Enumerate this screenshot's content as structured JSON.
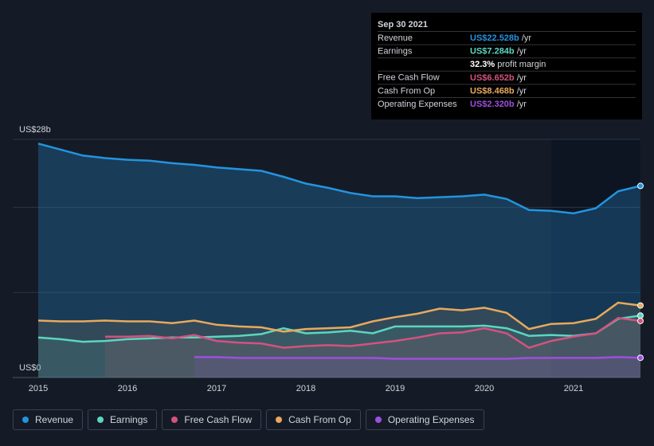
{
  "chart_data": {
    "type": "line",
    "x": [
      2015,
      2015.25,
      2015.5,
      2015.75,
      2016,
      2016.25,
      2016.5,
      2016.75,
      2017,
      2017.25,
      2017.5,
      2017.75,
      2018,
      2018.25,
      2018.5,
      2018.75,
      2019,
      2019.25,
      2019.5,
      2019.75,
      2020,
      2020.25,
      2020.5,
      2020.75,
      2021,
      2021.25,
      2021.5,
      2021.75
    ],
    "xlim": [
      2015,
      2021.75
    ],
    "xticks": [
      2015,
      2016,
      2017,
      2018,
      2019,
      2020,
      2021
    ],
    "ylim": [
      0,
      28
    ],
    "yticks": [
      {
        "value": 0,
        "label": "US$0"
      },
      {
        "value": 10,
        "label": null
      },
      {
        "value": 20,
        "label": null
      },
      {
        "value": 28,
        "label": "US$28b"
      }
    ],
    "grid": true,
    "series": [
      {
        "name": "Revenue",
        "color": "#2394df",
        "values": [
          27.5,
          26.8,
          26.1,
          25.8,
          25.6,
          25.5,
          25.2,
          25.0,
          24.7,
          24.5,
          24.3,
          23.6,
          22.8,
          22.3,
          21.7,
          21.3,
          21.3,
          21.1,
          21.2,
          21.3,
          21.5,
          21.0,
          19.7,
          19.6,
          19.3,
          19.9,
          21.9,
          22.528
        ]
      },
      {
        "name": "Earnings",
        "color": "#5cd6bf",
        "values": [
          4.7,
          4.5,
          4.2,
          4.3,
          4.5,
          4.6,
          4.7,
          4.7,
          4.8,
          4.9,
          5.1,
          5.8,
          5.2,
          5.3,
          5.5,
          5.2,
          6.0,
          6.0,
          6.0,
          6.0,
          6.1,
          5.8,
          4.9,
          5.0,
          4.9,
          5.2,
          6.9,
          7.284
        ]
      },
      {
        "name": "Free Cash Flow",
        "color": "#d4527f",
        "values": [
          null,
          null,
          null,
          4.8,
          4.8,
          4.9,
          4.6,
          5.0,
          4.3,
          4.1,
          4.0,
          3.5,
          3.7,
          3.8,
          3.7,
          4.0,
          4.3,
          4.7,
          5.2,
          5.3,
          5.8,
          5.2,
          3.5,
          4.3,
          4.8,
          5.2,
          7.0,
          6.652
        ]
      },
      {
        "name": "Cash From Op",
        "color": "#e8a95c",
        "values": [
          6.7,
          6.6,
          6.6,
          6.7,
          6.6,
          6.6,
          6.4,
          6.7,
          6.2,
          6.0,
          5.9,
          5.4,
          5.7,
          5.8,
          5.9,
          6.6,
          7.1,
          7.5,
          8.1,
          7.9,
          8.2,
          7.6,
          5.7,
          6.3,
          6.4,
          6.9,
          8.8,
          8.468
        ]
      },
      {
        "name": "Operating Expenses",
        "color": "#9d4fe0",
        "values": [
          null,
          null,
          null,
          null,
          null,
          null,
          null,
          2.4,
          2.4,
          2.3,
          2.3,
          2.3,
          2.3,
          2.3,
          2.3,
          2.3,
          2.2,
          2.2,
          2.2,
          2.2,
          2.2,
          2.2,
          2.3,
          2.3,
          2.3,
          2.3,
          2.4,
          2.32
        ]
      }
    ],
    "tooltip": {
      "date": "Sep 30 2021",
      "rows": [
        {
          "label": "Revenue",
          "value": "US$22.528b",
          "unit": "/yr"
        },
        {
          "label": "Earnings",
          "value": "US$7.284b",
          "unit": "/yr"
        },
        {
          "label": null,
          "value": "32.3%",
          "unit": "profit margin"
        },
        {
          "label": "Free Cash Flow",
          "value": "US$6.652b",
          "unit": "/yr"
        },
        {
          "label": "Cash From Op",
          "value": "US$8.468b",
          "unit": "/yr"
        },
        {
          "label": "Operating Expenses",
          "value": "US$2.320b",
          "unit": "/yr"
        }
      ]
    }
  }
}
